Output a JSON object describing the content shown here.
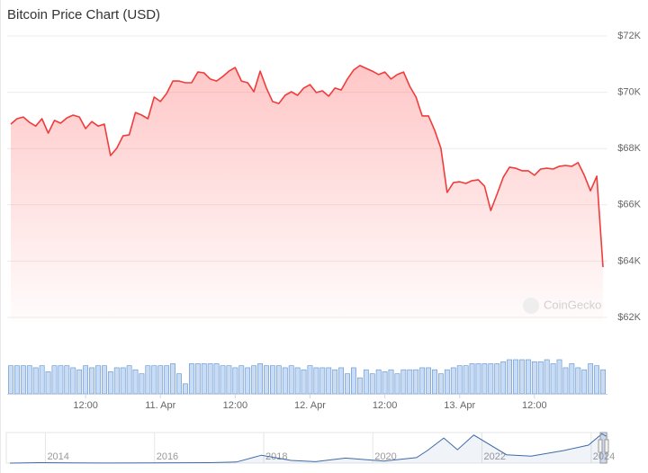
{
  "title": "Bitcoin Price Chart (USD)",
  "watermark": "CoinGecko",
  "chart_data": [
    {
      "type": "area",
      "categories": [
        null,
        null,
        null,
        null,
        null,
        null,
        null,
        null,
        null,
        null,
        null,
        null,
        "12:00",
        null,
        null,
        null,
        null,
        null,
        null,
        null,
        null,
        null,
        null,
        null,
        "11. Apr",
        null,
        null,
        null,
        null,
        null,
        null,
        null,
        null,
        null,
        null,
        null,
        "12:00",
        null,
        null,
        null,
        null,
        null,
        null,
        null,
        null,
        null,
        null,
        null,
        "12. Apr",
        null,
        null,
        null,
        null,
        null,
        null,
        null,
        null,
        null,
        null,
        null,
        "12:00",
        null,
        null,
        null,
        null,
        null,
        null,
        null,
        null,
        null,
        null,
        null,
        "13. Apr",
        null,
        null,
        null,
        null,
        null,
        null,
        null,
        null,
        null,
        null,
        null,
        "12:00",
        null,
        null,
        null,
        null,
        null,
        null,
        null,
        null,
        null,
        null,
        null
      ],
      "values": [
        68870,
        69060,
        69120,
        68930,
        68800,
        69060,
        68550,
        69000,
        68900,
        69090,
        69190,
        69120,
        68710,
        68960,
        68800,
        68870,
        67750,
        68010,
        68450,
        68490,
        69280,
        69190,
        69060,
        69830,
        69670,
        69960,
        70400,
        70400,
        70340,
        70340,
        70720,
        70690,
        70470,
        70400,
        70560,
        70750,
        70880,
        70400,
        70340,
        70020,
        70750,
        70150,
        69670,
        69600,
        69890,
        70020,
        69890,
        70150,
        70270,
        69990,
        70050,
        69860,
        70150,
        70080,
        70470,
        70790,
        70950,
        70850,
        70750,
        70630,
        70720,
        70470,
        70630,
        70720,
        70210,
        69830,
        69160,
        69160,
        68650,
        68010,
        66440,
        66790,
        66820,
        66760,
        66860,
        66890,
        66660,
        65800,
        66380,
        66980,
        67340,
        67300,
        67210,
        67210,
        67050,
        67270,
        67300,
        67270,
        67370,
        67400,
        67370,
        67500,
        67050,
        66500,
        67020,
        63790
      ],
      "color": "#f03c3c",
      "ylim": [
        62000,
        72000
      ],
      "yticks": [
        {
          "value": 62000,
          "label": "$62K"
        },
        {
          "value": 64000,
          "label": "$64K"
        },
        {
          "value": 66000,
          "label": "$66K"
        },
        {
          "value": 68000,
          "label": "$68K"
        },
        {
          "value": 70000,
          "label": "$70K"
        },
        {
          "value": 72000,
          "label": "$72K"
        }
      ],
      "grid": true,
      "volume": {
        "color": "#c9dcf3",
        "values": [
          28,
          28,
          28,
          28,
          26,
          28,
          22,
          28,
          28,
          28,
          26,
          24,
          28,
          26,
          28,
          28,
          22,
          26,
          26,
          28,
          24,
          20,
          28,
          28,
          28,
          28,
          30,
          20,
          10,
          30,
          30,
          30,
          30,
          30,
          28,
          28,
          26,
          28,
          26,
          28,
          30,
          28,
          28,
          28,
          26,
          28,
          26,
          24,
          28,
          26,
          26,
          26,
          24,
          26,
          20,
          26,
          16,
          24,
          20,
          24,
          22,
          24,
          20,
          24,
          24,
          24,
          26,
          26,
          24,
          20,
          24,
          26,
          28,
          28,
          30,
          30,
          30,
          30,
          30,
          32,
          34,
          34,
          34,
          34,
          32,
          32,
          34,
          30,
          34,
          26,
          30,
          26,
          24,
          30,
          28,
          24
        ]
      }
    },
    {
      "type": "line",
      "x": [
        2013.35,
        2013.9,
        2014.5,
        2015.0,
        2016.0,
        2017.0,
        2017.5,
        2017.96,
        2018.5,
        2018.95,
        2019.5,
        2020.2,
        2020.8,
        2021.0,
        2021.3,
        2021.55,
        2021.85,
        2022.45,
        2022.9,
        2023.5,
        2023.95,
        2024.2,
        2024.28
      ],
      "values": [
        100,
        1000,
        600,
        300,
        430,
        1000,
        2500,
        19000,
        6500,
        3500,
        12000,
        5000,
        13000,
        30000,
        60000,
        32000,
        67000,
        20000,
        16500,
        30000,
        43000,
        70000,
        64000
      ],
      "color": "#3d6aa8",
      "xlim": [
        2013.3,
        2024.3
      ],
      "ylim": [
        0,
        73000
      ],
      "xticks": [
        2014,
        2016,
        2018,
        2020,
        2022,
        2024
      ]
    }
  ]
}
